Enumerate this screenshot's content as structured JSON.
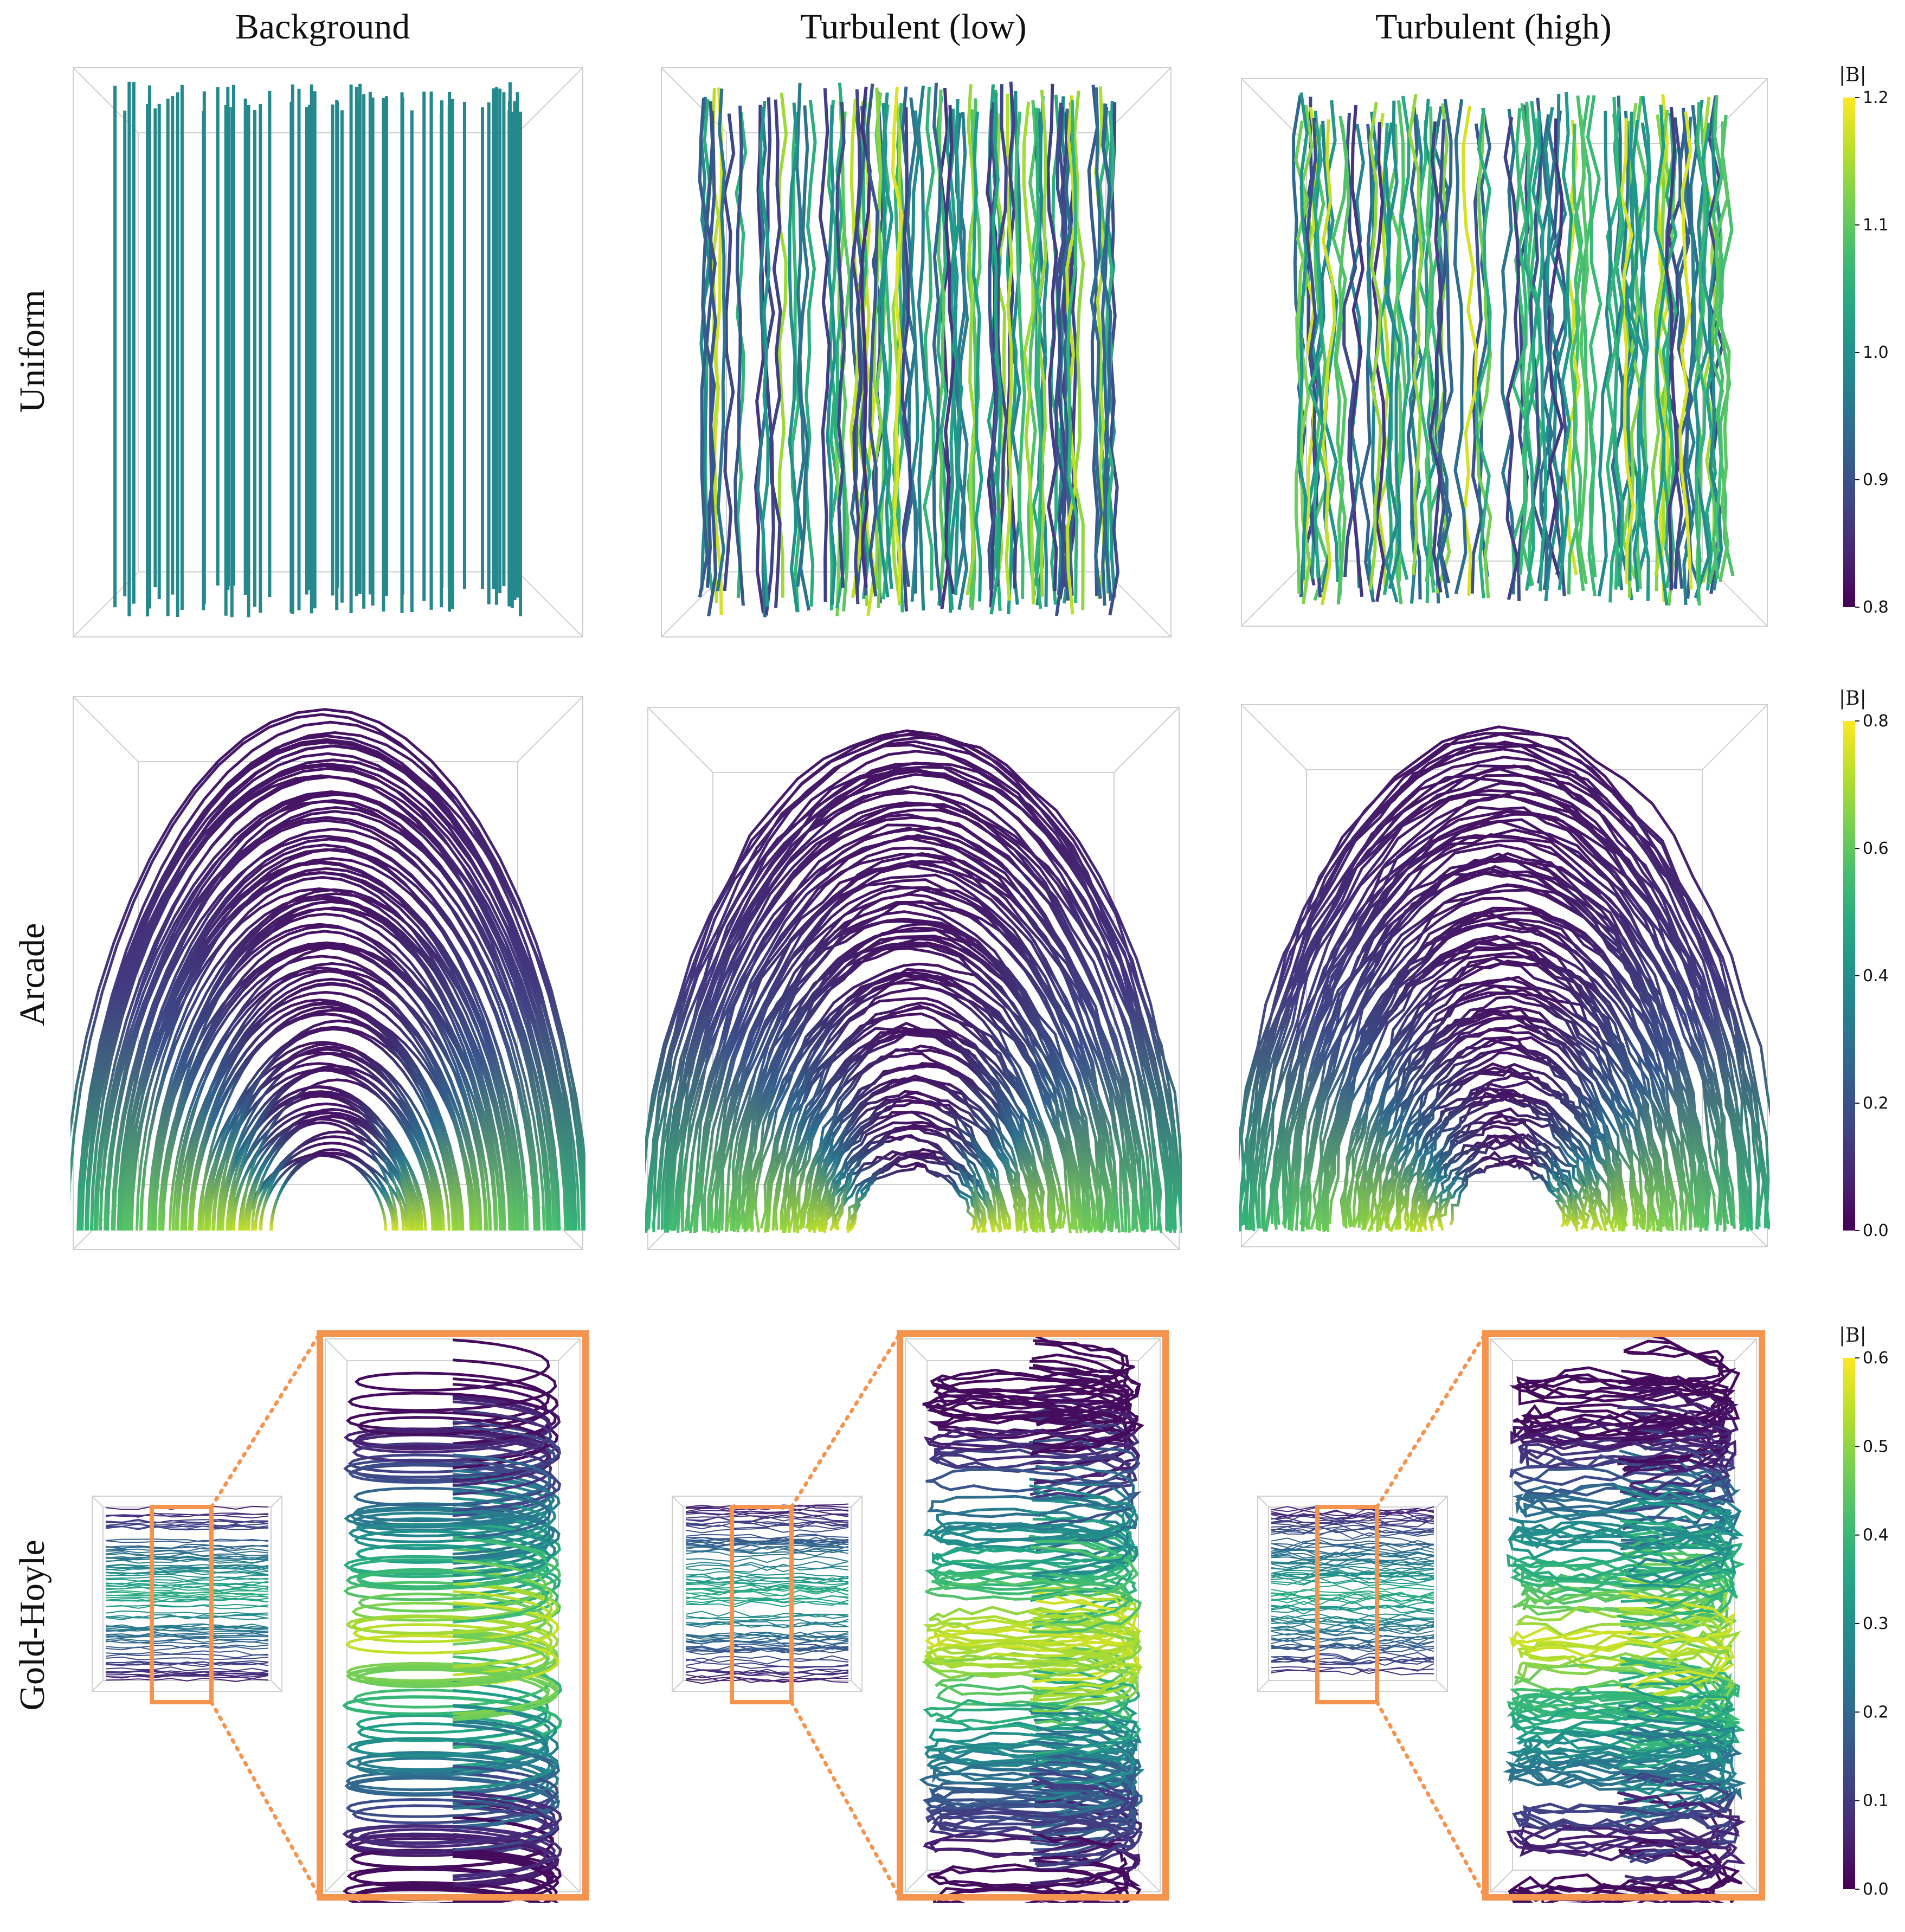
{
  "columns": [
    "Background",
    "Turbulent (low)",
    "Turbulent (high)"
  ],
  "rows": [
    "Uniform",
    "Arcade",
    "Gold-Hoyle"
  ],
  "colorbars": [
    {
      "label": "|B|",
      "ticks": [
        "0.8",
        "0.9",
        "1.0",
        "1.1",
        "1.2"
      ]
    },
    {
      "label": "|B|",
      "ticks": [
        "0.0",
        "0.2",
        "0.4",
        "0.6",
        "0.8"
      ]
    },
    {
      "label": "|B|",
      "ticks": [
        "0.0",
        "0.1",
        "0.2",
        "0.3",
        "0.4",
        "0.5",
        "0.6"
      ]
    }
  ],
  "colormap": "viridis",
  "colors": {
    "zoom_box": "#f4944f",
    "box_edge": "#cfcfcf"
  }
}
